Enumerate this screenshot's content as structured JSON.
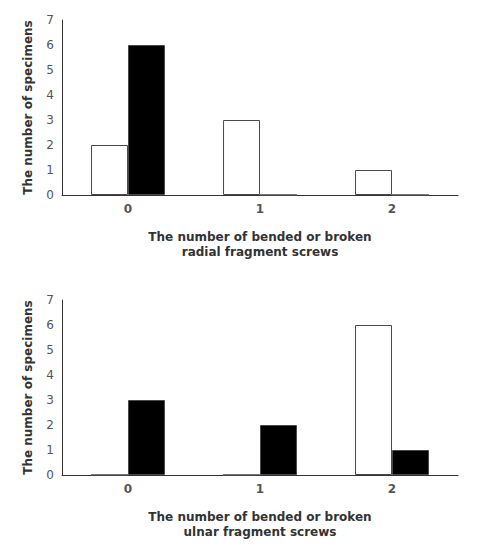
{
  "chart_data": [
    {
      "type": "bar",
      "categories": [
        "0",
        "1",
        "2"
      ],
      "series": [
        {
          "color": "#ffffff",
          "values": [
            2,
            3,
            1
          ]
        },
        {
          "color": "#000000",
          "values": [
            6,
            0,
            0
          ]
        }
      ],
      "xlabel": "The number of bended or broken\nradial fragment screws",
      "ylabel": "The number of specimens",
      "ylim": [
        0,
        7
      ],
      "yticks": [
        0,
        1,
        2,
        3,
        4,
        5,
        6,
        7
      ],
      "grid": false
    },
    {
      "type": "bar",
      "categories": [
        "0",
        "1",
        "2"
      ],
      "series": [
        {
          "color": "#ffffff",
          "values": [
            0,
            0,
            6
          ]
        },
        {
          "color": "#000000",
          "values": [
            3,
            2,
            1
          ]
        }
      ],
      "xlabel": "The number of bended or broken\nulnar fragment screws",
      "ylabel": "The number of specimens",
      "ylim": [
        0,
        7
      ],
      "yticks": [
        0,
        1,
        2,
        3,
        4,
        5,
        6,
        7
      ],
      "grid": false
    }
  ]
}
